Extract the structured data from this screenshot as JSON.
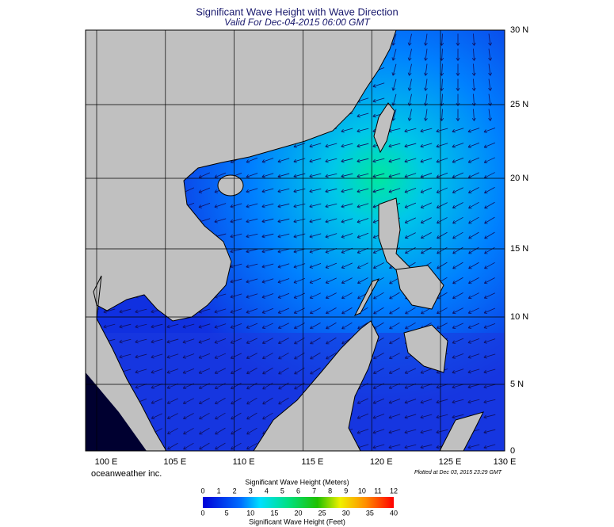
{
  "header": {
    "title": "Significant Wave Height with Wave Direction",
    "subtitle": "Valid For Dec-04-2015 06:00 GMT"
  },
  "lat_labels": [
    "30 N",
    "25 N",
    "20 N",
    "15 N",
    "10 N",
    "5 N",
    "0"
  ],
  "lon_labels": [
    "100 E",
    "105 E",
    "110 E",
    "115 E",
    "120 E",
    "125 E",
    "130 E"
  ],
  "credit": "oceanweather inc.",
  "plotted": "Plotted at Dec 03, 2015 23:29 GMT",
  "colorbar": {
    "meters_title": "Significant Wave Height (Meters)",
    "meters_ticks": [
      0,
      1,
      2,
      3,
      4,
      5,
      6,
      7,
      8,
      9,
      10,
      11,
      12
    ],
    "feet_title": "Significant Wave Height (Feet)",
    "feet_ticks": [
      0,
      5,
      10,
      15,
      20,
      25,
      30,
      35,
      40
    ]
  }
}
